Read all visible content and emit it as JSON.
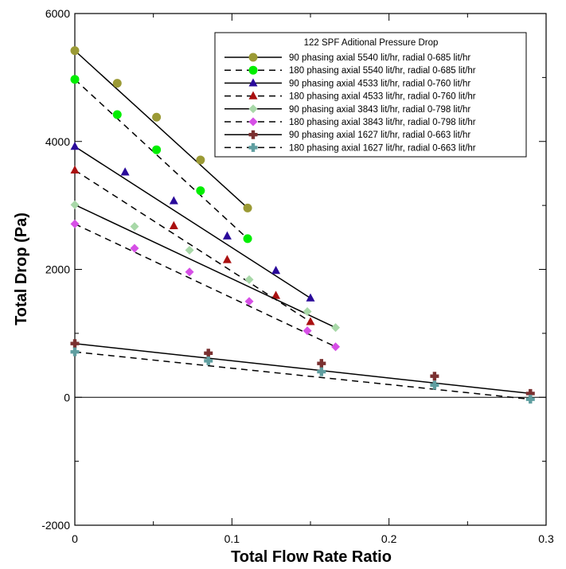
{
  "chart_data": {
    "type": "line",
    "title": "",
    "xlabel": "Total Flow Rate Ratio",
    "ylabel": "Total Drop (Pa)",
    "xlim": [
      0,
      0.3
    ],
    "ylim": [
      -2000,
      6000
    ],
    "x_ticks": [
      0,
      0.1,
      0.2,
      0.3
    ],
    "x_tick_labels": [
      "0",
      "0.1",
      "0.2",
      "0.3"
    ],
    "y_ticks": [
      -2000,
      0,
      2000,
      4000,
      6000
    ],
    "y_tick_labels": [
      "-2000",
      "0",
      "2000",
      "4000",
      "6000"
    ],
    "grid": false,
    "legend": {
      "title": "122 SPF Aditional Pressure Drop",
      "placement": "top-right"
    },
    "series": [
      {
        "name": "90 phasing axial 5540 lit/hr, radial 0-685 lit/hr",
        "color": "#9b9a35",
        "marker": "circle",
        "dash": "solid",
        "x": [
          0,
          0.027,
          0.052,
          0.08,
          0.11
        ],
        "y": [
          5420,
          4910,
          4380,
          3710,
          2960
        ],
        "fit": {
          "x": [
            0,
            0.11
          ],
          "y": [
            5420,
            2960
          ]
        }
      },
      {
        "name": "180 phasing axial 5540 lit/hr, radial 0-685 lit/hr",
        "color": "#00ee00",
        "marker": "circle",
        "dash": "dashed",
        "x": [
          0,
          0.027,
          0.052,
          0.08,
          0.11
        ],
        "y": [
          4970,
          4420,
          3870,
          3230,
          2480
        ],
        "fit": {
          "x": [
            0,
            0.11
          ],
          "y": [
            4970,
            2480
          ]
        }
      },
      {
        "name": "90 phasing axial 4533 lit/hr, radial 0-760 lit/hr",
        "color": "#2a0a9a",
        "marker": "triangle",
        "dash": "solid",
        "x": [
          0,
          0.032,
          0.063,
          0.097,
          0.128,
          0.15
        ],
        "y": [
          3920,
          3520,
          3070,
          2520,
          1980,
          1550
        ],
        "fit": {
          "x": [
            0,
            0.15
          ],
          "y": [
            3920,
            1550
          ]
        }
      },
      {
        "name": "180 phasing axial 4533 lit/hr, radial 0-760 lit/hr",
        "color": "#aa1010",
        "marker": "triangle",
        "dash": "dashed",
        "x": [
          0,
          0.063,
          0.097,
          0.128,
          0.15
        ],
        "y": [
          3550,
          2680,
          2150,
          1590,
          1180
        ],
        "fit": {
          "x": [
            0,
            0.15
          ],
          "y": [
            3550,
            1180
          ]
        }
      },
      {
        "name": "90 phasing axial 3843 lit/hr, radial 0-798 lit/hr",
        "color": "#a8d8a8",
        "marker": "diamond",
        "dash": "solid",
        "x": [
          0,
          0.038,
          0.073,
          0.111,
          0.148,
          0.166
        ],
        "y": [
          3010,
          2670,
          2300,
          1840,
          1340,
          1090
        ],
        "fit": {
          "x": [
            0,
            0.166
          ],
          "y": [
            3010,
            1090
          ]
        }
      },
      {
        "name": "180 phasing axial 3843 lit/hr, radial 0-798 lit/hr",
        "color": "#d64fe6",
        "marker": "diamond",
        "dash": "dashed",
        "x": [
          0,
          0.038,
          0.073,
          0.111,
          0.148,
          0.166
        ],
        "y": [
          2710,
          2330,
          1960,
          1500,
          1040,
          790
        ],
        "fit": {
          "x": [
            0,
            0.166
          ],
          "y": [
            2710,
            790
          ]
        }
      },
      {
        "name": "90 phasing axial 1627 lit/hr, radial 0-663 lit/hr",
        "color": "#7a3030",
        "marker": "plus",
        "dash": "solid",
        "x": [
          0,
          0.085,
          0.157,
          0.229,
          0.29
        ],
        "y": [
          840,
          690,
          530,
          330,
          60
        ],
        "fit": {
          "x": [
            0,
            0.29
          ],
          "y": [
            840,
            60
          ]
        }
      },
      {
        "name": "180 phasing axial 1627 lit/hr, radial 0-663 lit/hr",
        "color": "#5f9ea0",
        "marker": "plus",
        "dash": "dashed",
        "x": [
          0,
          0.085,
          0.157,
          0.229,
          0.29
        ],
        "y": [
          710,
          570,
          400,
          190,
          -30
        ],
        "fit": {
          "x": [
            0,
            0.29
          ],
          "y": [
            710,
            -30
          ]
        }
      }
    ]
  }
}
